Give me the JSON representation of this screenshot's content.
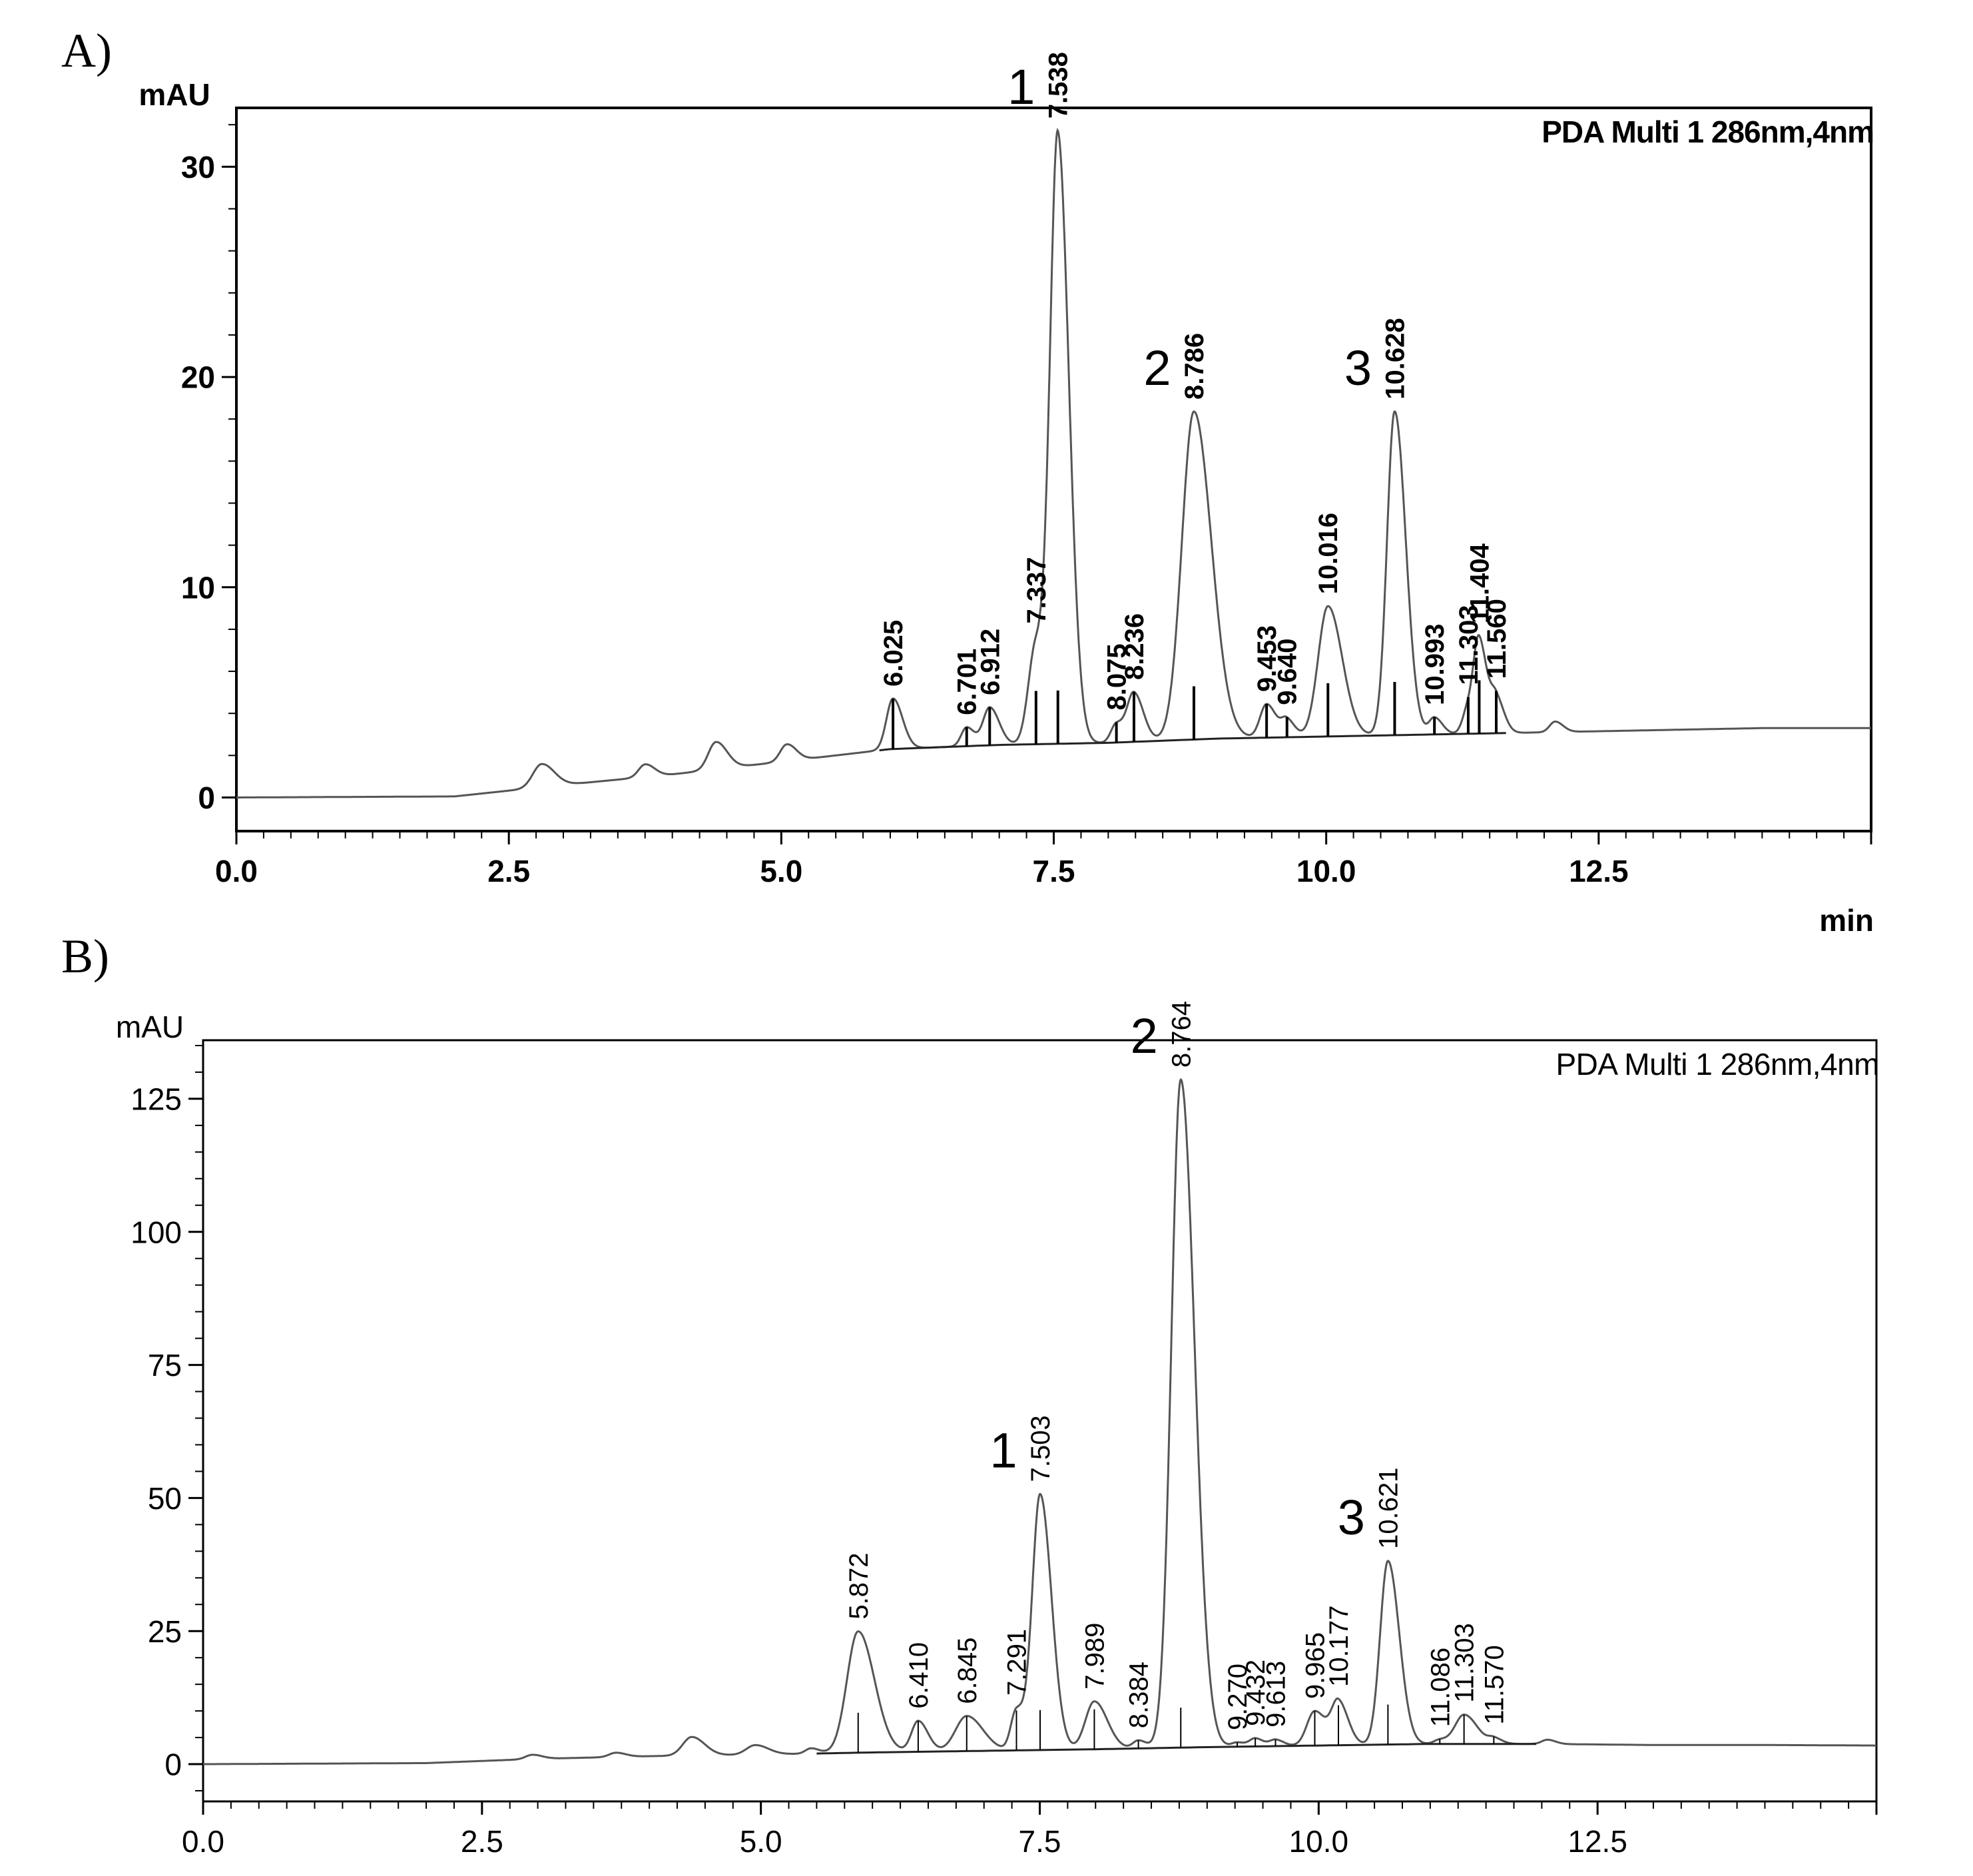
{
  "chart_data": [
    {
      "panel": "A)",
      "type": "line",
      "title": "PDA Multi 1 286nm,4nm",
      "xlabel": "min",
      "ylabel": "mAU",
      "xlim": [
        0,
        15
      ],
      "ylim": [
        -1.6,
        32.8
      ],
      "x_ticks": [
        "0.0",
        "2.5",
        "5.0",
        "7.5",
        "10.0",
        "12.5"
      ],
      "y_ticks": [
        "0",
        "10",
        "20",
        "30"
      ],
      "baseline": [
        [
          0,
          0.0
        ],
        [
          2.0,
          0.05
        ],
        [
          3.0,
          0.6
        ],
        [
          4.0,
          1.1
        ],
        [
          5.0,
          1.7
        ],
        [
          6.0,
          2.3
        ],
        [
          7.0,
          2.5
        ],
        [
          8.0,
          2.6
        ],
        [
          9.0,
          2.8
        ],
        [
          10.0,
          2.9
        ],
        [
          11.0,
          3.0
        ],
        [
          12.0,
          3.1
        ],
        [
          13.0,
          3.2
        ],
        [
          14.0,
          3.3
        ],
        [
          15.0,
          3.3
        ]
      ],
      "peaks": [
        {
          "rt": 2.8,
          "height": 1.1,
          "width": 0.08
        },
        {
          "rt": 3.75,
          "height": 0.6,
          "width": 0.06
        },
        {
          "rt": 4.4,
          "height": 1.3,
          "width": 0.07
        },
        {
          "rt": 5.05,
          "height": 0.8,
          "width": 0.06
        },
        {
          "rt": 6.025,
          "height": 2.4,
          "width": 0.06
        },
        {
          "rt": 6.701,
          "height": 0.9,
          "width": 0.05
        },
        {
          "rt": 6.912,
          "height": 1.8,
          "width": 0.06
        },
        {
          "rt": 7.337,
          "height": 4.7,
          "width": 0.07
        },
        {
          "rt": 7.538,
          "height": 28.5,
          "width": 0.07
        },
        {
          "rt": 8.075,
          "height": 0.9,
          "width": 0.05
        },
        {
          "rt": 8.236,
          "height": 2.3,
          "width": 0.06
        },
        {
          "rt": 8.786,
          "height": 15.6,
          "width": 0.11
        },
        {
          "rt": 9.453,
          "height": 1.6,
          "width": 0.06
        },
        {
          "rt": 9.64,
          "height": 0.8,
          "width": 0.05
        },
        {
          "rt": 10.016,
          "height": 6.2,
          "width": 0.09
        },
        {
          "rt": 10.628,
          "height": 15.4,
          "width": 0.07
        },
        {
          "rt": 10.993,
          "height": 0.8,
          "width": 0.05
        },
        {
          "rt": 11.303,
          "height": 1.2,
          "width": 0.05
        },
        {
          "rt": 11.404,
          "height": 4.2,
          "width": 0.05
        },
        {
          "rt": 11.56,
          "height": 1.6,
          "width": 0.05
        },
        {
          "rt": 12.1,
          "height": 0.5,
          "width": 0.05
        }
      ],
      "peak_labels": [
        "6.025",
        "6.701",
        "6.912",
        "7.337",
        "7.538",
        "8.075",
        "8.236",
        "8.786",
        "9.453",
        "9.640",
        "10.016",
        "10.628",
        "10.993",
        "11.303",
        "11.404",
        "11.560"
      ],
      "annotations": [
        {
          "text": "1",
          "x": 7.538
        },
        {
          "text": "2",
          "x": 8.786
        },
        {
          "text": "3",
          "x": 10.628
        }
      ]
    },
    {
      "panel": "B)",
      "type": "line",
      "title": "PDA Multi 1 286nm,4nm",
      "xlabel": "",
      "ylabel": "mAU",
      "xlim": [
        0,
        15
      ],
      "ylim": [
        -7,
        136
      ],
      "x_ticks": [
        "0.0",
        "2.5",
        "5.0",
        "7.5",
        "10.0",
        "12.5"
      ],
      "y_ticks": [
        "0",
        "25",
        "50",
        "75",
        "100",
        "125"
      ],
      "baseline": [
        [
          0,
          0.0
        ],
        [
          2.0,
          0.2
        ],
        [
          3.0,
          1.0
        ],
        [
          4.0,
          1.5
        ],
        [
          5.0,
          1.8
        ],
        [
          6.0,
          2.2
        ],
        [
          7.0,
          2.5
        ],
        [
          8.0,
          2.8
        ],
        [
          9.0,
          3.2
        ],
        [
          10.0,
          3.5
        ],
        [
          11.0,
          3.8
        ],
        [
          12.0,
          3.8
        ],
        [
          13.0,
          3.6
        ],
        [
          14.0,
          3.6
        ],
        [
          15.0,
          3.5
        ]
      ],
      "peaks": [
        {
          "rt": 2.95,
          "height": 0.8,
          "width": 0.06
        },
        {
          "rt": 3.7,
          "height": 0.8,
          "width": 0.06
        },
        {
          "rt": 4.38,
          "height": 3.5,
          "width": 0.08
        },
        {
          "rt": 4.95,
          "height": 1.8,
          "width": 0.08
        },
        {
          "rt": 5.45,
          "height": 1.0,
          "width": 0.05
        },
        {
          "rt": 5.872,
          "height": 22.8,
          "width": 0.1
        },
        {
          "rt": 6.41,
          "height": 5.8,
          "width": 0.06
        },
        {
          "rt": 6.845,
          "height": 6.6,
          "width": 0.1
        },
        {
          "rt": 7.291,
          "height": 7.5,
          "width": 0.05
        },
        {
          "rt": 7.503,
          "height": 48.0,
          "width": 0.07
        },
        {
          "rt": 7.989,
          "height": 9.0,
          "width": 0.08
        },
        {
          "rt": 8.384,
          "height": 1.5,
          "width": 0.05
        },
        {
          "rt": 8.764,
          "height": 125.5,
          "width": 0.085
        },
        {
          "rt": 9.27,
          "height": 0.8,
          "width": 0.05
        },
        {
          "rt": 9.432,
          "height": 1.5,
          "width": 0.05
        },
        {
          "rt": 9.613,
          "height": 1.2,
          "width": 0.05
        },
        {
          "rt": 9.965,
          "height": 6.5,
          "width": 0.07
        },
        {
          "rt": 10.177,
          "height": 8.0,
          "width": 0.06
        },
        {
          "rt": 10.621,
          "height": 34.5,
          "width": 0.07
        },
        {
          "rt": 11.086,
          "height": 0.8,
          "width": 0.05
        },
        {
          "rt": 11.303,
          "height": 5.5,
          "width": 0.08
        },
        {
          "rt": 11.57,
          "height": 1.0,
          "width": 0.05
        },
        {
          "rt": 12.05,
          "height": 0.8,
          "width": 0.05
        }
      ],
      "peak_labels": [
        "5.872",
        "6.410",
        "6.845",
        "7.291",
        "7.503",
        "7.989",
        "8.384",
        "8.764",
        "9.270",
        "9.432",
        "9.613",
        "9.965",
        "10.177",
        "10.621",
        "11.086",
        "11.303",
        "11.570"
      ],
      "annotations": [
        {
          "text": "1",
          "x": 7.503
        },
        {
          "text": "2",
          "x": 8.764
        },
        {
          "text": "3",
          "x": 10.621
        }
      ]
    }
  ]
}
